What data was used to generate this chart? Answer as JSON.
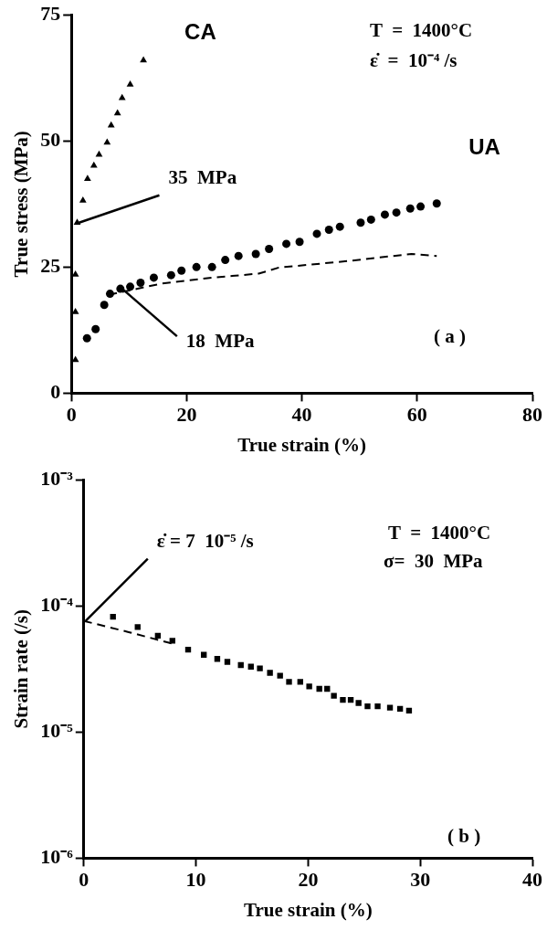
{
  "chart_data": [
    {
      "type": "scatter",
      "ylabel": "True stress (MPa)",
      "xlabel": "True strain (%)",
      "xlim": [
        0,
        80
      ],
      "xticks": [
        0,
        20,
        40,
        60,
        80
      ],
      "ylim": [
        0,
        75
      ],
      "yticks": [
        0,
        25,
        50,
        75
      ],
      "grid": false,
      "legend": false,
      "series": [
        {
          "name": "CA",
          "type": "scatter",
          "marker": "triangle",
          "color": "#000000",
          "x": [
            0.7,
            0.7,
            0.7,
            1,
            2,
            2.8,
            3.9,
            4.8,
            6.2,
            6.9,
            8,
            8.8,
            10.2,
            12.5
          ],
          "values": [
            6.6,
            16.1,
            23.5,
            33.8,
            38.2,
            42.5,
            45.1,
            47.3,
            49.7,
            53.1,
            55.5,
            58.5,
            61.2,
            66
          ]
        },
        {
          "name": "UA",
          "type": "scatter",
          "marker": "circle",
          "color": "#000000",
          "x": [
            2.7,
            4.2,
            5.7,
            6.7,
            8.5,
            10.2,
            12,
            14.3,
            17.3,
            19.1,
            21.7,
            24.4,
            26.7,
            29,
            32,
            34.3,
            37.3,
            39.6,
            42.6,
            44.7,
            46.6,
            50.2,
            52,
            54.4,
            56.4,
            58.8,
            60.6,
            63.4
          ],
          "values": [
            10.9,
            12.7,
            17.5,
            19.7,
            20.7,
            21.1,
            21.9,
            22.9,
            23.4,
            24.3,
            25,
            25,
            26.4,
            27.2,
            27.6,
            28.6,
            29.6,
            30,
            31.6,
            32.4,
            33,
            33.8,
            34.4,
            35.4,
            35.8,
            36.6,
            37,
            37.6
          ]
        },
        {
          "type": "line",
          "marker": "none",
          "line_style": "dashed",
          "color": "#000000",
          "x": [
            6.5,
            15.5,
            24.4,
            32.5,
            36,
            48,
            59,
            63.4
          ],
          "values": [
            19.5,
            21.7,
            22.9,
            23.7,
            24.9,
            26.2,
            27.6,
            27.2
          ]
        }
      ],
      "annotations": [
        {
          "text": "35  MPa",
          "x": 1,
          "y": 33.8
        },
        {
          "text": "18  MPa",
          "x": 8.5,
          "y": 20.7
        },
        "T  =  1400°C",
        "ε̇  =  10⁻⁴ /s",
        "( a )"
      ]
    },
    {
      "type": "scatter",
      "ylabel": "Strain rate (/s)",
      "xlabel": "True strain (%)",
      "log": "y",
      "xlim": [
        0,
        40
      ],
      "xticks": [
        0,
        10,
        20,
        30,
        40
      ],
      "ylim": [
        1e-06,
        0.001
      ],
      "yticks": [
        {
          "value": 1e-06,
          "label": "10⁻⁶"
        },
        {
          "value": 1e-05,
          "label": "10⁻⁵"
        },
        {
          "value": 0.0001,
          "label": "10⁻⁴"
        },
        {
          "value": 0.001,
          "label": "10⁻³"
        }
      ],
      "grid": false,
      "legend": false,
      "series": [
        {
          "type": "scatter",
          "marker": "square",
          "color": "#000000",
          "x": [
            2.6,
            4.8,
            6.6,
            7.9,
            9.3,
            10.7,
            11.9,
            12.8,
            14,
            14.9,
            15.7,
            16.6,
            17.5,
            18.3,
            19.3,
            20.1,
            21,
            21.7,
            22.3,
            23.1,
            23.8,
            24.5,
            25.3,
            26.2,
            27.3,
            28.2,
            29
          ],
          "values": [
            8.2e-05,
            6.8e-05,
            5.8e-05,
            5.3e-05,
            4.5e-05,
            4.1e-05,
            3.8e-05,
            3.6e-05,
            3.4e-05,
            3.3e-05,
            3.2e-05,
            2.95e-05,
            2.8e-05,
            2.5e-05,
            2.5e-05,
            2.3e-05,
            2.2e-05,
            2.2e-05,
            1.94e-05,
            1.8e-05,
            1.8e-05,
            1.7e-05,
            1.6e-05,
            1.6e-05,
            1.56e-05,
            1.53e-05,
            1.48e-05
          ]
        },
        {
          "type": "line",
          "marker": "none",
          "line_style": "dashed",
          "color": "#000000",
          "x": [
            0,
            4,
            8
          ],
          "values": [
            7.6e-05,
            6.2e-05,
            5e-05
          ]
        }
      ],
      "annotations": [
        {
          "text": "ε̇ = 7  10⁻⁵ /s",
          "x": 0,
          "y": 7.6e-05
        },
        "T  =  1400°C",
        "σ=  30  MPa",
        "( b )"
      ]
    }
  ]
}
